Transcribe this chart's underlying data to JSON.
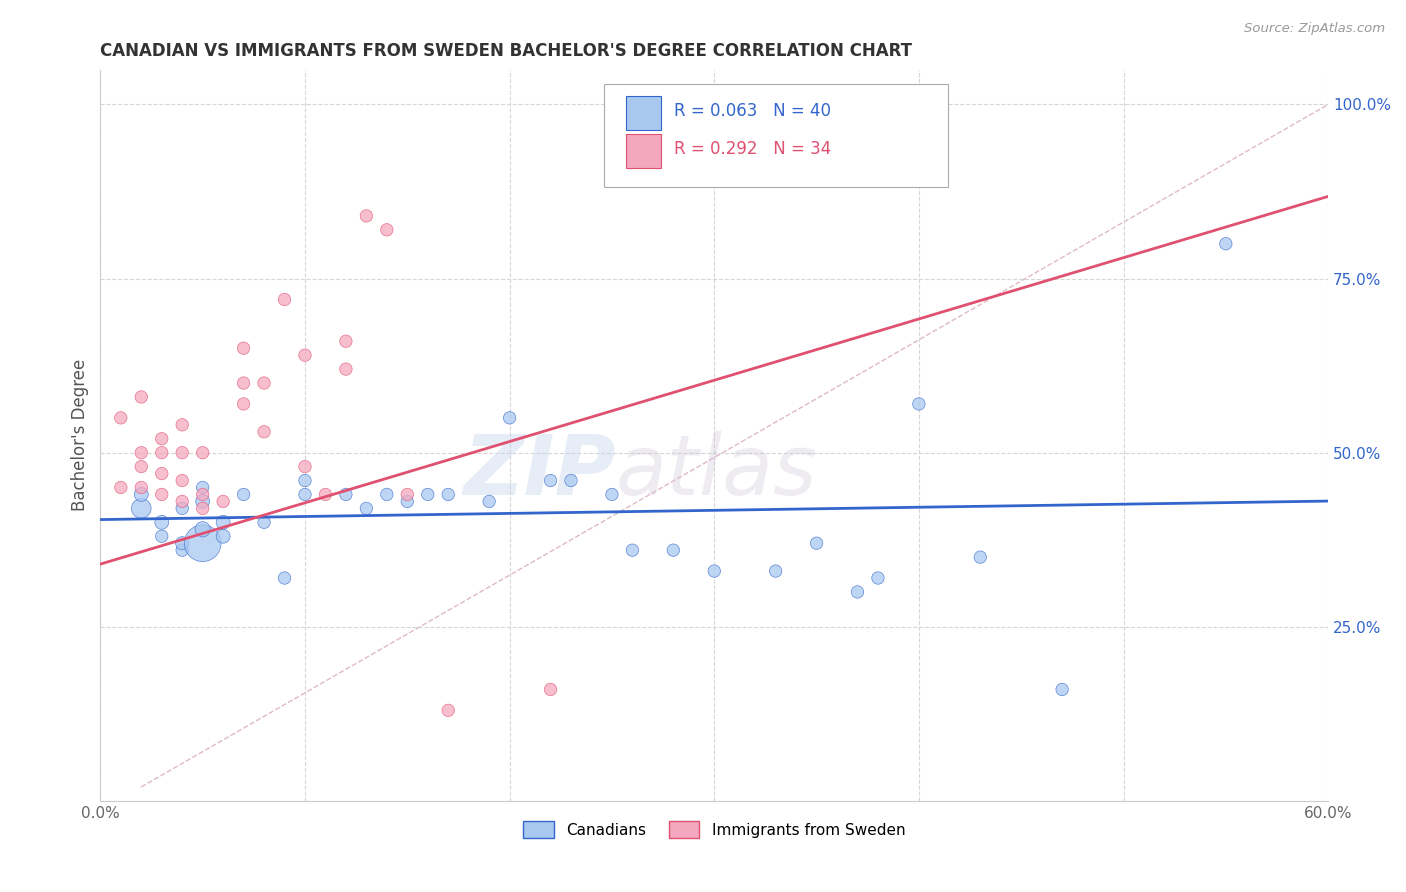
{
  "title": "CANADIAN VS IMMIGRANTS FROM SWEDEN BACHELOR'S DEGREE CORRELATION CHART",
  "source": "Source: ZipAtlas.com",
  "ylabel": "Bachelor's Degree",
  "legend_canadian": "Canadians",
  "legend_immigrant": "Immigrants from Sweden",
  "R_canadian": 0.063,
  "N_canadian": 40,
  "R_immigrant": 0.292,
  "N_immigrant": 34,
  "color_canadian": "#A8C8F0",
  "color_immigrant": "#F4A8C0",
  "color_canadian_line": "#3366CC",
  "color_immigrant_line": "#E05070",
  "color_diagonal": "#D8A8B8",
  "canadian_x": [
    0.02,
    0.02,
    0.03,
    0.03,
    0.04,
    0.04,
    0.04,
    0.05,
    0.05,
    0.05,
    0.05,
    0.06,
    0.06,
    0.07,
    0.08,
    0.09,
    0.1,
    0.1,
    0.12,
    0.13,
    0.14,
    0.15,
    0.16,
    0.17,
    0.19,
    0.2,
    0.22,
    0.23,
    0.25,
    0.26,
    0.28,
    0.3,
    0.33,
    0.35,
    0.37,
    0.38,
    0.4,
    0.43,
    0.47,
    0.55
  ],
  "canadian_y": [
    0.42,
    0.44,
    0.38,
    0.4,
    0.36,
    0.37,
    0.42,
    0.37,
    0.39,
    0.43,
    0.45,
    0.38,
    0.4,
    0.44,
    0.4,
    0.32,
    0.44,
    0.46,
    0.44,
    0.42,
    0.44,
    0.43,
    0.44,
    0.44,
    0.43,
    0.55,
    0.46,
    0.46,
    0.44,
    0.36,
    0.36,
    0.33,
    0.33,
    0.37,
    0.3,
    0.32,
    0.57,
    0.35,
    0.16,
    0.8
  ],
  "canadian_size": [
    200,
    100,
    80,
    100,
    80,
    90,
    80,
    700,
    120,
    100,
    80,
    100,
    100,
    80,
    80,
    80,
    80,
    80,
    80,
    80,
    80,
    80,
    80,
    80,
    80,
    80,
    80,
    80,
    80,
    80,
    80,
    80,
    80,
    80,
    80,
    80,
    80,
    80,
    80,
    80
  ],
  "immigrant_x": [
    0.01,
    0.01,
    0.02,
    0.02,
    0.02,
    0.02,
    0.03,
    0.03,
    0.03,
    0.03,
    0.04,
    0.04,
    0.04,
    0.04,
    0.05,
    0.05,
    0.05,
    0.06,
    0.07,
    0.07,
    0.07,
    0.08,
    0.08,
    0.09,
    0.1,
    0.1,
    0.11,
    0.12,
    0.12,
    0.13,
    0.14,
    0.15,
    0.17,
    0.22
  ],
  "immigrant_y": [
    0.45,
    0.55,
    0.45,
    0.48,
    0.5,
    0.58,
    0.44,
    0.47,
    0.5,
    0.52,
    0.43,
    0.46,
    0.5,
    0.54,
    0.42,
    0.44,
    0.5,
    0.43,
    0.57,
    0.6,
    0.65,
    0.53,
    0.6,
    0.72,
    0.48,
    0.64,
    0.44,
    0.62,
    0.66,
    0.84,
    0.82,
    0.44,
    0.13,
    0.16
  ],
  "immigrant_size": [
    80,
    80,
    80,
    80,
    80,
    80,
    80,
    80,
    80,
    80,
    80,
    80,
    80,
    80,
    80,
    80,
    80,
    80,
    80,
    80,
    80,
    80,
    80,
    80,
    80,
    80,
    80,
    80,
    80,
    80,
    80,
    80,
    80,
    80
  ],
  "watermark_zip": "ZIP",
  "watermark_atlas": "atlas",
  "background_color": "#FFFFFF",
  "xlim": [
    0.0,
    0.6
  ],
  "ylim": [
    0.0,
    1.05
  ]
}
